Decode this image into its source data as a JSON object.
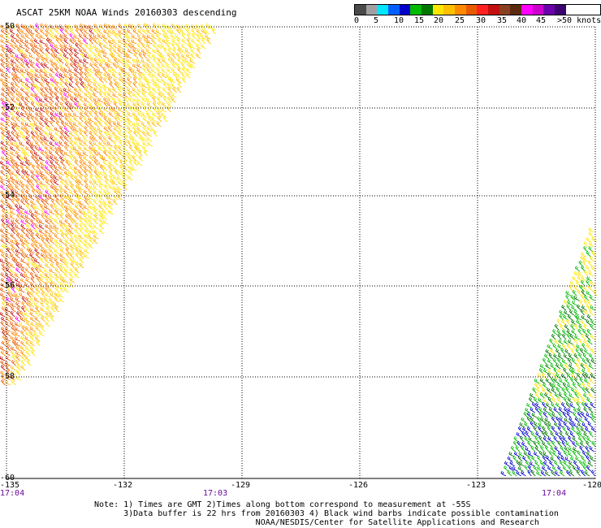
{
  "title": "ASCAT 25KM NOAA Winds 20160303 descending",
  "legend": {
    "colors": [
      "#4a4a4a",
      "#a0a0a0",
      "#00e6ff",
      "#0060ff",
      "#0000cc",
      "#00bb00",
      "#007700",
      "#ffe600",
      "#ffc000",
      "#ff8a00",
      "#e85a00",
      "#ff2020",
      "#c01010",
      "#8a4020",
      "#5a2a10",
      "#ff00ff",
      "#cc00cc",
      "#6a00aa",
      "#3a0070"
    ],
    "labels": [
      "0",
      "5",
      "10",
      "15",
      "20",
      "25",
      "30",
      "35",
      "40",
      "45",
      ">50 knots"
    ]
  },
  "lat_labels": [
    "-50",
    "-52",
    "-54",
    "-56",
    "-58",
    "-60"
  ],
  "lon_labels": [
    "-135",
    "-132",
    "-129",
    "-126",
    "-123",
    "-120"
  ],
  "time_labels": [
    "17:04",
    "17:03",
    "17:04"
  ],
  "notes": [
    "Note: 1) Times are GMT 2)Times along bottom correspond to measurement at -55S",
    "      3)Data buffer is 22 hrs from 20160303 4) Black wind barbs indicate possible contamination",
    "                                 NOAA/NESDIS/Center for Satellite Applications and Research"
  ],
  "swaths": [
    {
      "name": "west-swath",
      "dominant_colors": [
        "#ffe600",
        "#ffc000",
        "#ff8a00",
        "#e85a00",
        "#c01010",
        "#ff00ff"
      ]
    },
    {
      "name": "east-swath",
      "dominant_colors": [
        "#ffe600",
        "#00bb00",
        "#007700",
        "#0000cc"
      ]
    }
  ]
}
